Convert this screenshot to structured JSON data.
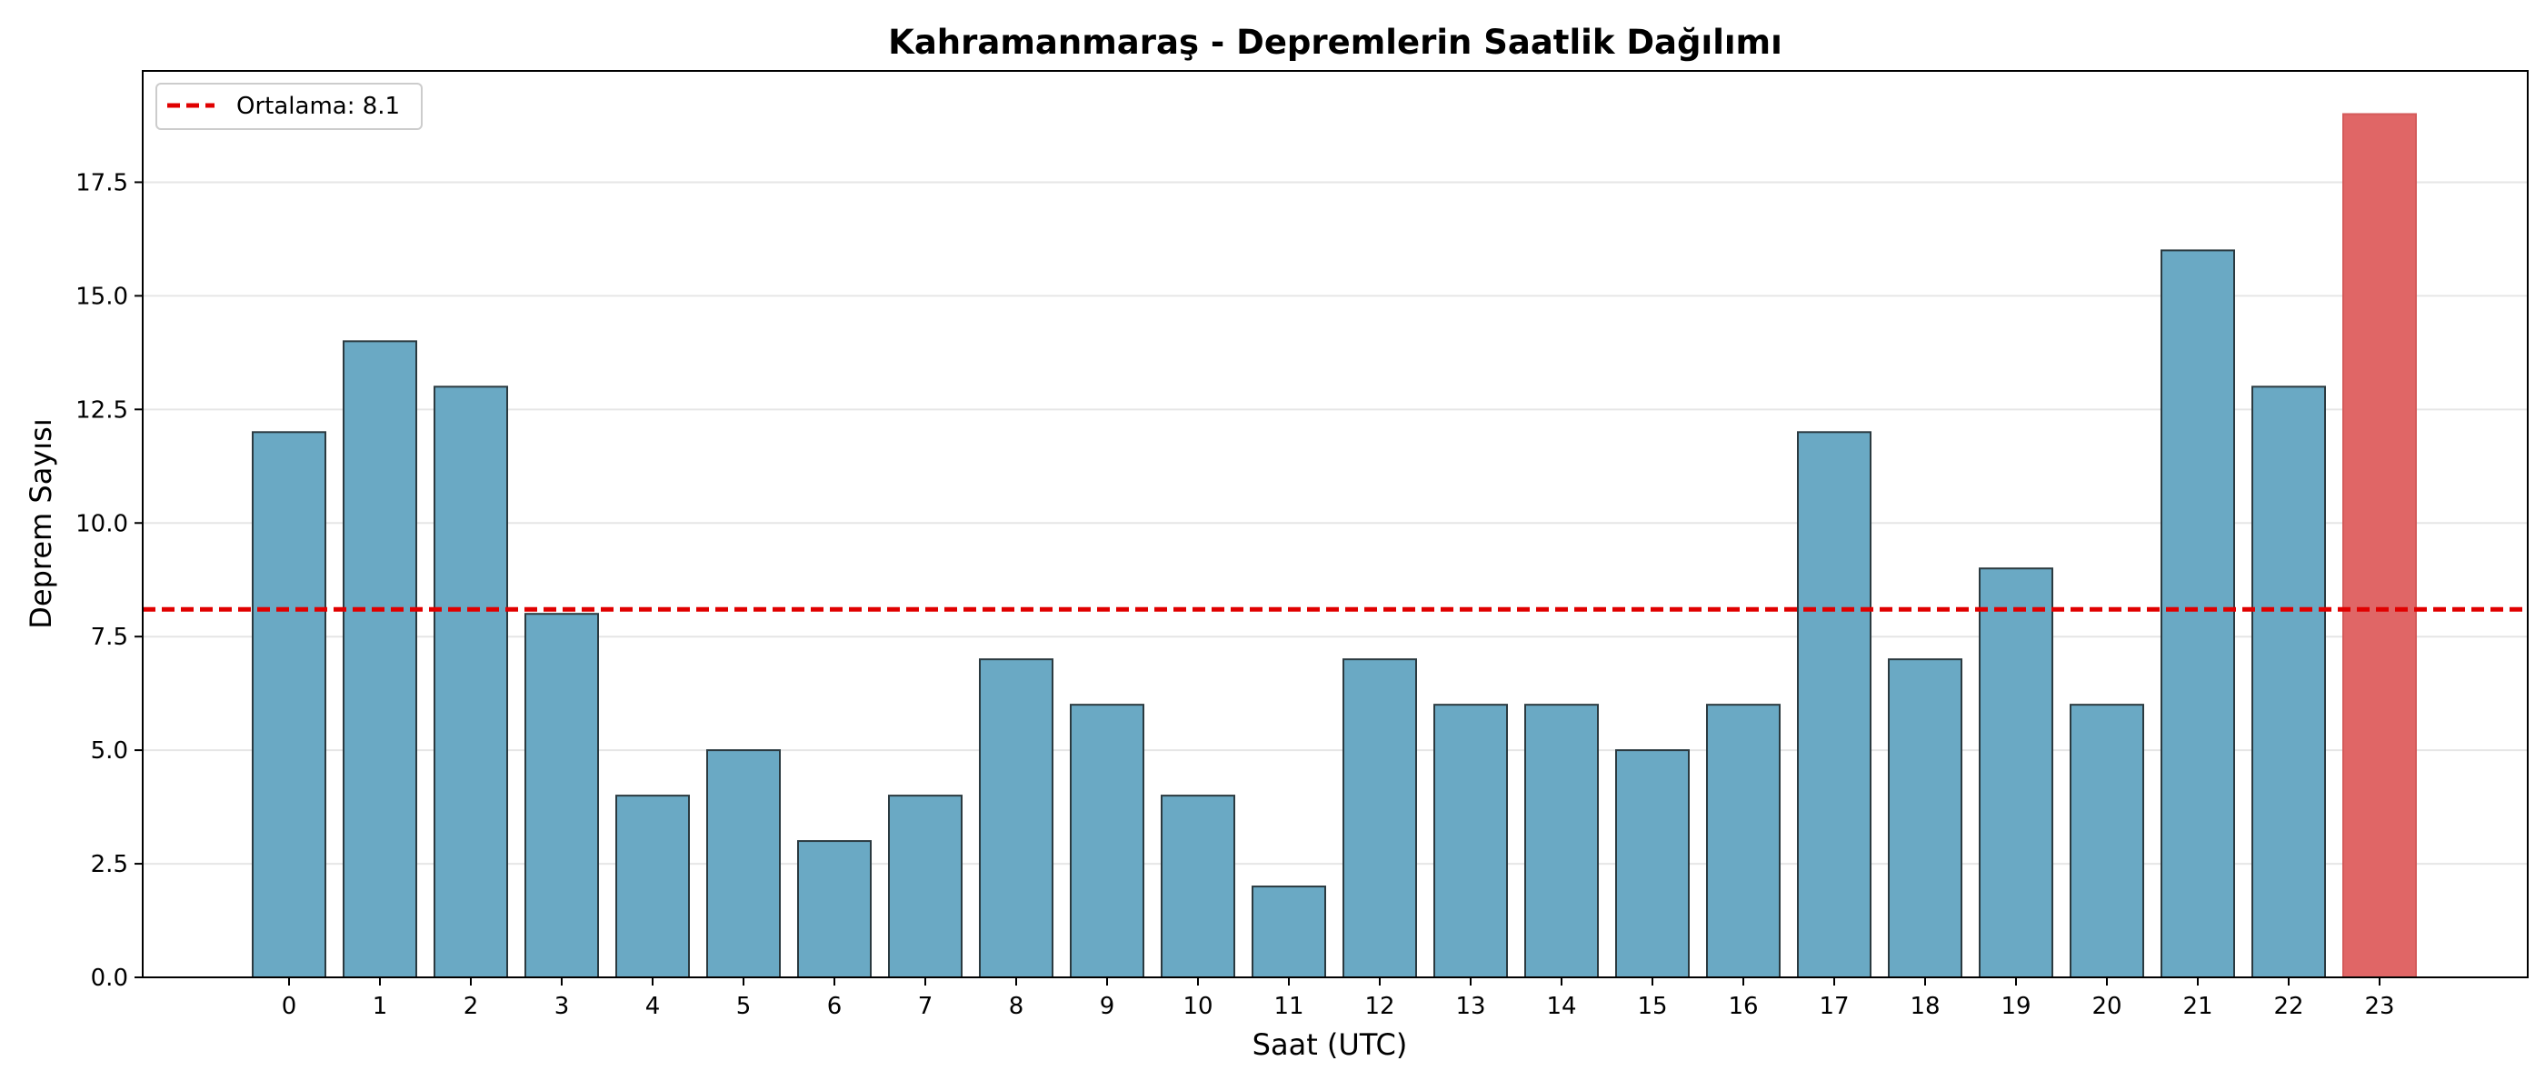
{
  "chart_data": {
    "type": "bar",
    "title": "Kahramanmaraş - Depremlerin Saatlik Dağılımı",
    "xlabel": "Saat (UTC)",
    "ylabel": "Deprem Sayısı",
    "categories": [
      "0",
      "1",
      "2",
      "3",
      "4",
      "5",
      "6",
      "7",
      "8",
      "9",
      "10",
      "11",
      "12",
      "13",
      "14",
      "15",
      "16",
      "17",
      "18",
      "19",
      "20",
      "21",
      "22",
      "23"
    ],
    "values": [
      12,
      14,
      13,
      8,
      4,
      5,
      3,
      4,
      7,
      6,
      4,
      2,
      7,
      6,
      6,
      5,
      6,
      12,
      7,
      9,
      6,
      16,
      13,
      19
    ],
    "ylim": [
      0,
      19.95
    ],
    "yticks": [
      "0.0",
      "2.5",
      "5.0",
      "7.5",
      "10.0",
      "12.5",
      "15.0",
      "17.5"
    ],
    "mean_line": {
      "value": 8.1,
      "label": "Ortalama: 8.1"
    },
    "highlight_index": 23,
    "grid": "horizontal",
    "legend_position": "top-left",
    "colors": {
      "bar": "#6aa9c4",
      "highlight_bar": "#e06666",
      "bar_edge": "#2b3a40",
      "mean_line": "#e00000",
      "grid": "#e6e6e6"
    }
  }
}
